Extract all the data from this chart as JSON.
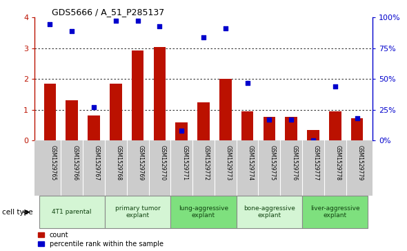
{
  "title": "GDS5666 / A_51_P285137",
  "samples": [
    "GSM1529765",
    "GSM1529766",
    "GSM1529767",
    "GSM1529768",
    "GSM1529769",
    "GSM1529770",
    "GSM1529771",
    "GSM1529772",
    "GSM1529773",
    "GSM1529774",
    "GSM1529775",
    "GSM1529776",
    "GSM1529777",
    "GSM1529778",
    "GSM1529779"
  ],
  "counts": [
    1.85,
    1.3,
    0.82,
    1.85,
    2.92,
    3.05,
    0.6,
    1.25,
    2.0,
    0.95,
    0.78,
    0.78,
    0.35,
    0.95,
    0.72
  ],
  "blue_dots_pct": [
    94.5,
    88.75,
    27.0,
    97.5,
    97.5,
    93.0,
    8.0,
    83.75,
    91.25,
    47.0,
    17.0,
    17.0,
    0.0,
    44.0,
    18.0
  ],
  "cell_groups": [
    {
      "label": "4T1 parental",
      "indices": [
        0,
        1,
        2
      ],
      "color": "#d4f5d4"
    },
    {
      "label": "primary tumor\nexplant",
      "indices": [
        3,
        4,
        5
      ],
      "color": "#d4f5d4"
    },
    {
      "label": "lung-aggressive\nexplant",
      "indices": [
        6,
        7,
        8
      ],
      "color": "#7ee07e"
    },
    {
      "label": "bone-aggressive\nexplant",
      "indices": [
        9,
        10,
        11
      ],
      "color": "#d4f5d4"
    },
    {
      "label": "liver-aggressive\nexplant",
      "indices": [
        12,
        13,
        14
      ],
      "color": "#7ee07e"
    }
  ],
  "bar_color": "#bb1100",
  "dot_color": "#0000cc",
  "ylim_left": [
    0,
    4
  ],
  "ylim_right": [
    0,
    100
  ],
  "yticks_left": [
    0,
    1,
    2,
    3,
    4
  ],
  "yticks_right": [
    0,
    25,
    50,
    75,
    100
  ],
  "yticklabels_right": [
    "0%",
    "25%",
    "50%",
    "75%",
    "100%"
  ],
  "legend_count_label": "count",
  "legend_pct_label": "percentile rank within the sample",
  "cell_type_label": "cell type",
  "bar_width": 0.55,
  "xtick_bg": "#cccccc",
  "group_border_color": "#888888"
}
